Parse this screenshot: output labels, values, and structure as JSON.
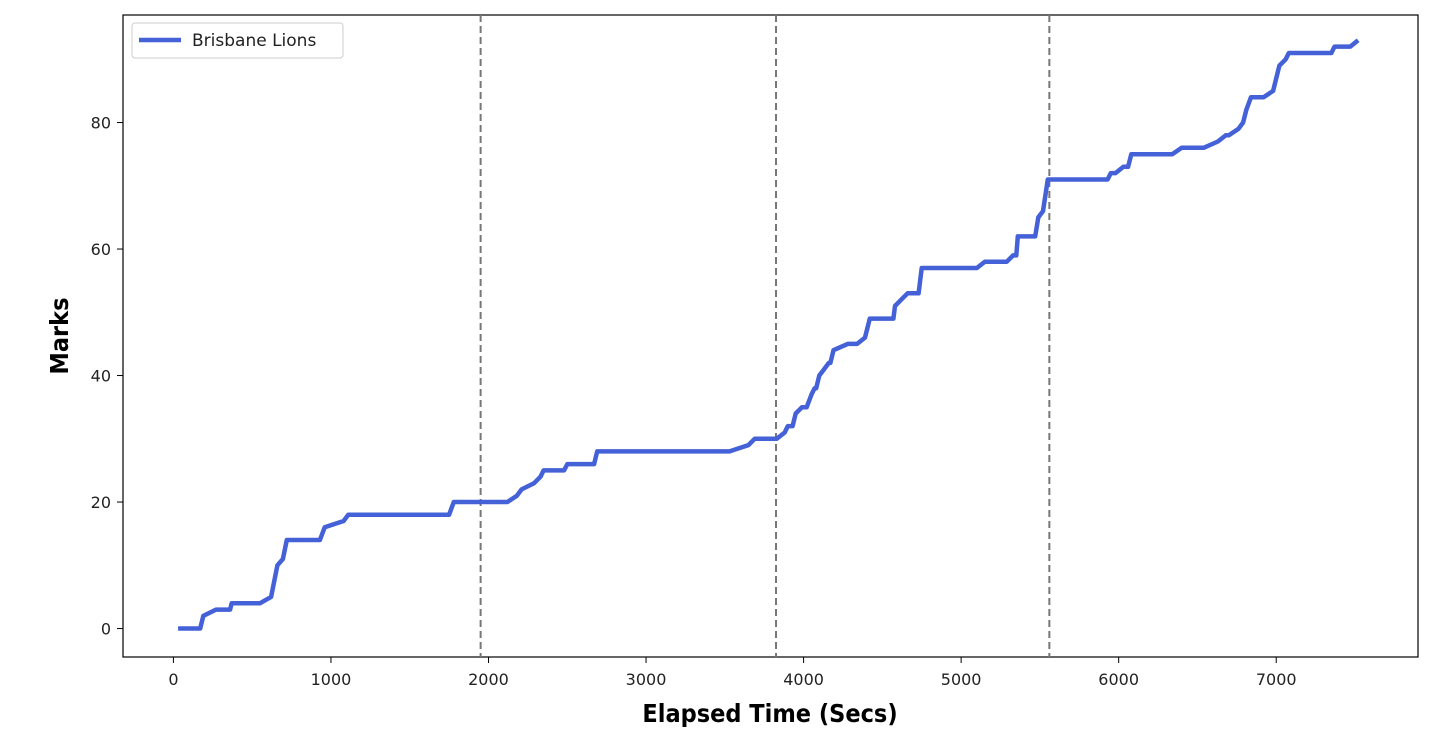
{
  "chart_data": {
    "type": "line",
    "title": "",
    "xlabel": "Elapsed Time (Secs)",
    "ylabel": "Marks",
    "xlim": [
      -320,
      7900
    ],
    "ylim": [
      -4.5,
      97
    ],
    "xticks": [
      0,
      1000,
      2000,
      3000,
      4000,
      5000,
      6000,
      7000
    ],
    "yticks": [
      0,
      20,
      40,
      60,
      80
    ],
    "grid": false,
    "legend": {
      "position": "top-left"
    },
    "vlines": [
      1950,
      3825,
      5560
    ],
    "vline_color": "#777777",
    "series": [
      {
        "name": "Brisbane Lions",
        "color": "#4461d7",
        "points": [
          [
            30,
            0
          ],
          [
            170,
            0
          ],
          [
            190,
            2
          ],
          [
            270,
            3
          ],
          [
            360,
            3
          ],
          [
            370,
            4
          ],
          [
            550,
            4
          ],
          [
            620,
            5
          ],
          [
            660,
            10
          ],
          [
            695,
            11
          ],
          [
            720,
            14
          ],
          [
            930,
            14
          ],
          [
            960,
            16
          ],
          [
            1080,
            17
          ],
          [
            1110,
            18
          ],
          [
            1750,
            18
          ],
          [
            1780,
            20
          ],
          [
            2120,
            20
          ],
          [
            2180,
            21
          ],
          [
            2210,
            22
          ],
          [
            2290,
            23
          ],
          [
            2330,
            24
          ],
          [
            2350,
            25
          ],
          [
            2480,
            25
          ],
          [
            2500,
            26
          ],
          [
            2670,
            26
          ],
          [
            2690,
            28
          ],
          [
            3530,
            28
          ],
          [
            3650,
            29
          ],
          [
            3690,
            30
          ],
          [
            3830,
            30
          ],
          [
            3880,
            31
          ],
          [
            3900,
            32
          ],
          [
            3930,
            32
          ],
          [
            3950,
            34
          ],
          [
            3990,
            35
          ],
          [
            4020,
            35
          ],
          [
            4050,
            37
          ],
          [
            4070,
            38
          ],
          [
            4080,
            38
          ],
          [
            4100,
            40
          ],
          [
            4130,
            41
          ],
          [
            4160,
            42
          ],
          [
            4170,
            42
          ],
          [
            4190,
            44
          ],
          [
            4280,
            45
          ],
          [
            4340,
            45
          ],
          [
            4390,
            46
          ],
          [
            4420,
            49
          ],
          [
            4570,
            49
          ],
          [
            4580,
            51
          ],
          [
            4620,
            52
          ],
          [
            4660,
            53
          ],
          [
            4730,
            53
          ],
          [
            4750,
            57
          ],
          [
            5100,
            57
          ],
          [
            5150,
            58
          ],
          [
            5290,
            58
          ],
          [
            5330,
            59
          ],
          [
            5350,
            59
          ],
          [
            5360,
            62
          ],
          [
            5470,
            62
          ],
          [
            5490,
            65
          ],
          [
            5520,
            66
          ],
          [
            5550,
            71
          ],
          [
            5930,
            71
          ],
          [
            5950,
            72
          ],
          [
            5980,
            72
          ],
          [
            6030,
            73
          ],
          [
            6060,
            73
          ],
          [
            6080,
            75
          ],
          [
            6340,
            75
          ],
          [
            6400,
            76
          ],
          [
            6540,
            76
          ],
          [
            6630,
            77
          ],
          [
            6680,
            78
          ],
          [
            6700,
            78
          ],
          [
            6760,
            79
          ],
          [
            6790,
            80
          ],
          [
            6810,
            82
          ],
          [
            6840,
            84
          ],
          [
            6920,
            84
          ],
          [
            6980,
            85
          ],
          [
            7020,
            89
          ],
          [
            7060,
            90
          ],
          [
            7080,
            91
          ],
          [
            7350,
            91
          ],
          [
            7370,
            92
          ],
          [
            7470,
            92
          ],
          [
            7520,
            93
          ]
        ]
      }
    ]
  }
}
